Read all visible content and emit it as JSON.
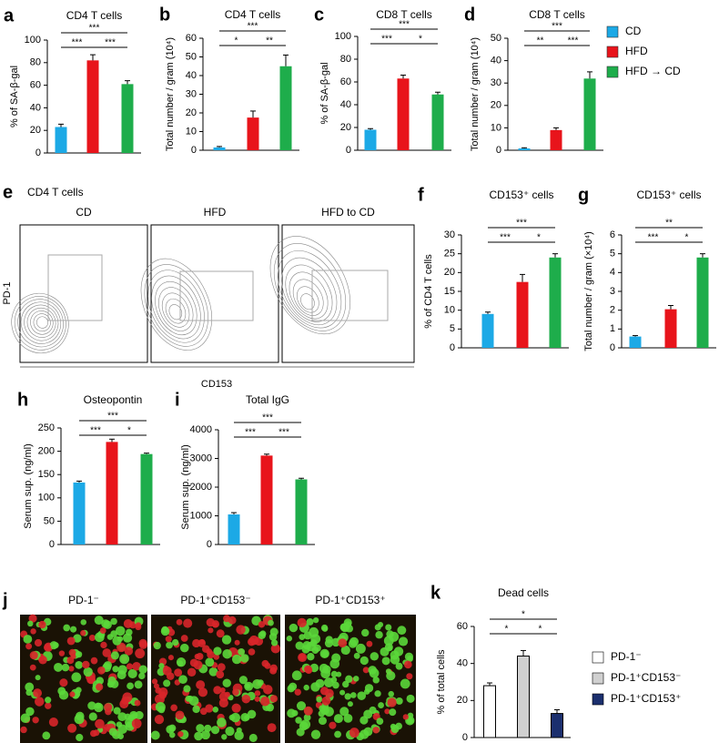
{
  "chart_data": [
    {
      "type": "bar",
      "panel": "a",
      "title": "CD4 T cells",
      "y_label": "% of SA-β-gal",
      "values": [
        23,
        82,
        61
      ],
      "errors": [
        2.5,
        5,
        3
      ],
      "colors": [
        "#1ca9e6",
        "#e8141b",
        "#1ead4b"
      ],
      "ylim": [
        0,
        100
      ],
      "yticks": [
        0,
        20,
        40,
        60,
        80,
        100
      ],
      "annotations": [
        {
          "label": "***",
          "pair": [
            0,
            1
          ]
        },
        {
          "label": "***",
          "pair": [
            1,
            2
          ]
        },
        {
          "label": "***",
          "pair": [
            0,
            2
          ]
        }
      ]
    },
    {
      "type": "bar",
      "panel": "b",
      "title": "CD4 T cells",
      "y_label": "Total number / gram (10⁴)",
      "values": [
        1.5,
        17.5,
        45
      ],
      "errors": [
        0.5,
        3.5,
        6
      ],
      "colors": [
        "#1ca9e6",
        "#e8141b",
        "#1ead4b"
      ],
      "ylim": [
        0,
        60
      ],
      "yticks": [
        0,
        10,
        20,
        30,
        40,
        50,
        60
      ],
      "annotations": [
        {
          "label": "*",
          "pair": [
            0,
            1
          ]
        },
        {
          "label": "**",
          "pair": [
            1,
            2
          ]
        },
        {
          "label": "***",
          "pair": [
            0,
            2
          ]
        }
      ]
    },
    {
      "type": "bar",
      "panel": "c",
      "title": "CD8 T cells",
      "y_label": "% of SA-β-gal",
      "values": [
        18,
        63,
        49
      ],
      "errors": [
        1,
        3,
        2
      ],
      "colors": [
        "#1ca9e6",
        "#e8141b",
        "#1ead4b"
      ],
      "ylim": [
        0,
        100
      ],
      "yticks": [
        0,
        20,
        40,
        60,
        80,
        100
      ],
      "annotations": [
        {
          "label": "***",
          "pair": [
            0,
            1
          ]
        },
        {
          "label": "*",
          "pair": [
            1,
            2
          ]
        },
        {
          "label": "***",
          "pair": [
            0,
            2
          ]
        }
      ]
    },
    {
      "type": "bar",
      "panel": "d",
      "title": "CD8 T cells",
      "y_label": "Total number / gram (10⁴)",
      "values": [
        0.8,
        9,
        32
      ],
      "errors": [
        0.3,
        1,
        3
      ],
      "colors": [
        "#1ca9e6",
        "#e8141b",
        "#1ead4b"
      ],
      "ylim": [
        0,
        50
      ],
      "yticks": [
        0,
        10,
        20,
        30,
        40,
        50
      ],
      "annotations": [
        {
          "label": "**",
          "pair": [
            0,
            1
          ]
        },
        {
          "label": "***",
          "pair": [
            1,
            2
          ]
        },
        {
          "label": "***",
          "pair": [
            0,
            2
          ]
        }
      ]
    },
    {
      "type": "bar",
      "panel": "f",
      "title": "CD153⁺ cells",
      "y_label": "% of CD4 T cells",
      "values": [
        9,
        17.5,
        24
      ],
      "errors": [
        0.5,
        2,
        1
      ],
      "colors": [
        "#1ca9e6",
        "#e8141b",
        "#1ead4b"
      ],
      "ylim": [
        0,
        30
      ],
      "yticks": [
        0,
        5,
        10,
        15,
        20,
        25,
        30
      ],
      "annotations": [
        {
          "label": "***",
          "pair": [
            0,
            1
          ]
        },
        {
          "label": "*",
          "pair": [
            1,
            2
          ]
        },
        {
          "label": "***",
          "pair": [
            0,
            2
          ]
        }
      ]
    },
    {
      "type": "bar",
      "panel": "g",
      "title": "CD153⁺ cells",
      "y_label": "Total number / gram (×10⁴)",
      "values": [
        0.6,
        2.05,
        4.8
      ],
      "errors": [
        0.05,
        0.2,
        0.2
      ],
      "colors": [
        "#1ca9e6",
        "#e8141b",
        "#1ead4b"
      ],
      "ylim": [
        0,
        6
      ],
      "yticks": [
        0,
        1,
        2,
        3,
        4,
        5,
        6
      ],
      "annotations": [
        {
          "label": "***",
          "pair": [
            0,
            1
          ]
        },
        {
          "label": "*",
          "pair": [
            1,
            2
          ]
        },
        {
          "label": "**",
          "pair": [
            0,
            2
          ]
        }
      ]
    },
    {
      "type": "bar",
      "panel": "h",
      "title": "Osteopontin",
      "y_label": "Serum sup. (ng/ml)",
      "values": [
        133,
        220,
        194
      ],
      "errors": [
        3,
        6,
        2
      ],
      "colors": [
        "#1ca9e6",
        "#e8141b",
        "#1ead4b"
      ],
      "ylim": [
        0,
        250
      ],
      "yticks": [
        0,
        50,
        100,
        150,
        200,
        250
      ],
      "annotations": [
        {
          "label": "***",
          "pair": [
            0,
            1
          ]
        },
        {
          "label": "*",
          "pair": [
            1,
            2
          ]
        },
        {
          "label": "***",
          "pair": [
            0,
            2
          ]
        }
      ]
    },
    {
      "type": "bar",
      "panel": "i",
      "title": "Total IgG",
      "y_label": "Serum sup. (ng/ml)",
      "values": [
        1050,
        3100,
        2270
      ],
      "errors": [
        60,
        50,
        40
      ],
      "colors": [
        "#1ca9e6",
        "#e8141b",
        "#1ead4b"
      ],
      "ylim": [
        0,
        4000
      ],
      "yticks": [
        0,
        1000,
        2000,
        3000,
        4000
      ],
      "annotations": [
        {
          "label": "***",
          "pair": [
            0,
            1
          ]
        },
        {
          "label": "***",
          "pair": [
            1,
            2
          ]
        },
        {
          "label": "***",
          "pair": [
            0,
            2
          ]
        }
      ]
    },
    {
      "type": "bar",
      "panel": "k",
      "title": "Dead cells",
      "y_label": "% of total cells",
      "values": [
        28,
        44,
        13
      ],
      "errors": [
        1.5,
        3,
        2
      ],
      "colors": [
        "#ffffff",
        "#d0d0d0",
        "#1b2f6e"
      ],
      "ylim": [
        0,
        60
      ],
      "yticks": [
        0,
        20,
        40,
        60
      ],
      "annotations": [
        {
          "label": "*",
          "pair": [
            0,
            1
          ]
        },
        {
          "label": "*",
          "pair": [
            1,
            2
          ]
        },
        {
          "label": "*",
          "pair": [
            0,
            2
          ]
        }
      ]
    }
  ],
  "legend_diet": [
    {
      "name": "CD",
      "color": "#1ca9e6"
    },
    {
      "name": "HFD",
      "color": "#e8141b"
    },
    {
      "name": "HFD → CD",
      "color": "#1ead4b"
    }
  ],
  "legend_cells": [
    {
      "name": "PD-1⁻",
      "color": "#ffffff"
    },
    {
      "name": "PD-1⁺CD153⁻",
      "color": "#d0d0d0"
    },
    {
      "name": "PD-1⁺CD153⁺",
      "color": "#1b2f6e"
    }
  ],
  "panel_e": {
    "panel": "e",
    "title": "CD4 T cells",
    "columns": [
      "CD",
      "HFD",
      "HFD to CD"
    ],
    "y_label": "PD-1",
    "x_label": "CD153"
  },
  "panel_j": {
    "panel": "j",
    "columns": [
      "PD-1⁻",
      "PD-1⁺CD153⁻",
      "PD-1⁺CD153⁺"
    ]
  }
}
